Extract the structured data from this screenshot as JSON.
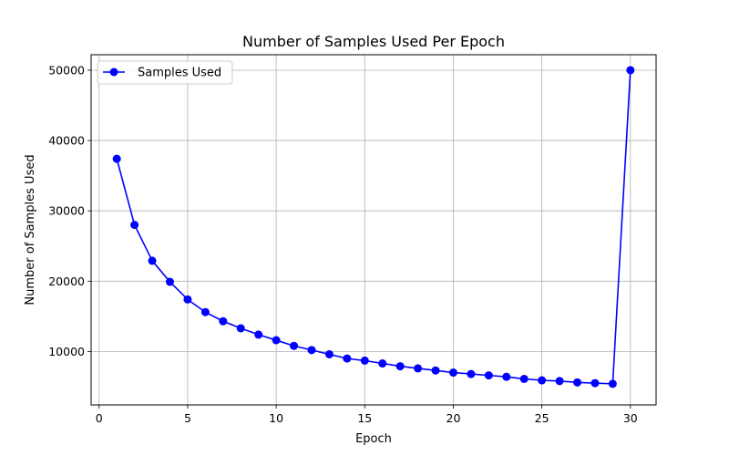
{
  "chart_data": {
    "type": "line",
    "title": "Number of Samples Used Per Epoch",
    "xlabel": "Epoch",
    "ylabel": "Number of Samples Used",
    "xlim": [
      -0.45,
      31.45
    ],
    "ylim": [
      2400,
      52200
    ],
    "x_ticks": [
      0,
      5,
      10,
      15,
      20,
      25,
      30
    ],
    "y_ticks": [
      10000,
      20000,
      30000,
      40000,
      50000
    ],
    "grid": true,
    "legend_position": "top-left",
    "series": [
      {
        "name": "Samples Used",
        "color": "#0000ff",
        "marker": "circle",
        "x": [
          1,
          2,
          3,
          4,
          5,
          6,
          7,
          8,
          9,
          10,
          11,
          12,
          13,
          14,
          15,
          16,
          17,
          18,
          19,
          20,
          21,
          22,
          23,
          24,
          25,
          26,
          27,
          28,
          29,
          30
        ],
        "y": [
          37400,
          28000,
          22900,
          19900,
          17400,
          15600,
          14300,
          13300,
          12400,
          11600,
          10800,
          10200,
          9600,
          9000,
          8700,
          8300,
          7900,
          7600,
          7300,
          7000,
          6800,
          6600,
          6400,
          6100,
          5900,
          5800,
          5600,
          5500,
          5400,
          50000
        ]
      }
    ]
  }
}
